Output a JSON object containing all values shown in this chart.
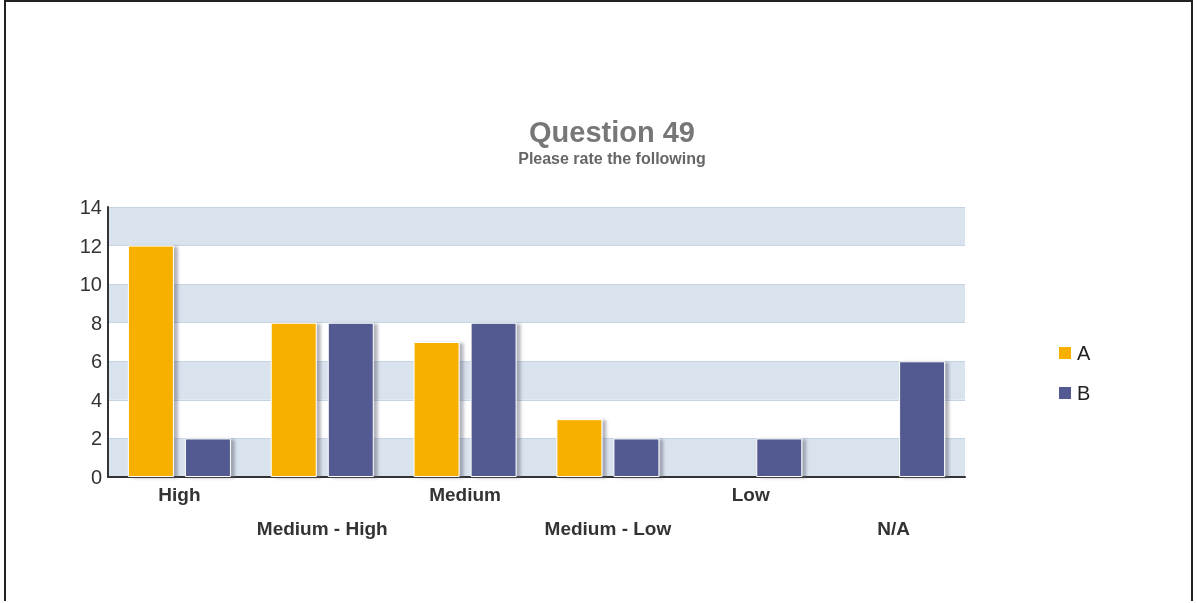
{
  "chart_data": {
    "type": "bar",
    "title": "Question 49",
    "subtitle": "Please rate the following",
    "categories": [
      "High",
      "Medium - High",
      "Medium",
      "Medium - Low",
      "Low",
      "N/A"
    ],
    "series": [
      {
        "name": "A",
        "color": "#f7b000",
        "values": [
          12,
          8,
          7,
          3,
          null,
          null
        ]
      },
      {
        "name": "B",
        "color": "#525a91",
        "values": [
          2,
          8,
          8,
          2,
          2,
          6
        ]
      }
    ],
    "ylim": [
      0,
      14
    ],
    "yticks": [
      0,
      2,
      4,
      6,
      8,
      10,
      12,
      14
    ],
    "grid": true,
    "legend": "right"
  }
}
